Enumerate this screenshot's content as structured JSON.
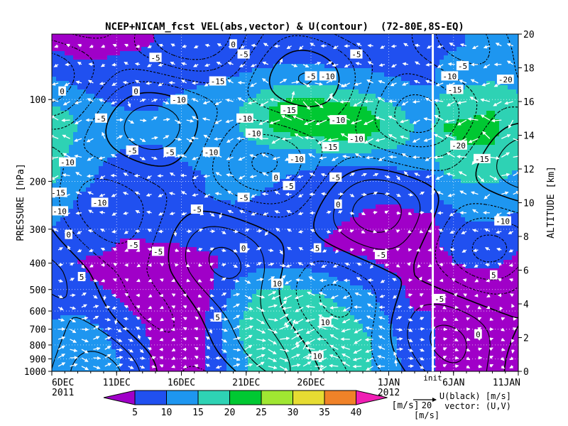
{
  "chart_data": {
    "type": "heatmap",
    "title": "NCEP+NICAM_fcst VEL(abs,vector) & U(contour)  (72-80E,8S-EQ)",
    "ylabel_left": "PRESSURE [hPa]",
    "ylabel_right": "ALTITUDE [km]",
    "x_ticks": [
      {
        "day": 0,
        "label": "6DEC",
        "sub": "2011"
      },
      {
        "day": 5,
        "label": "11DEC",
        "sub": ""
      },
      {
        "day": 10,
        "label": "16DEC",
        "sub": ""
      },
      {
        "day": 15,
        "label": "21DEC",
        "sub": ""
      },
      {
        "day": 20,
        "label": "26DEC",
        "sub": ""
      },
      {
        "day": 26,
        "label": "1JAN",
        "sub": "2012"
      },
      {
        "day": 31,
        "label": "6JAN",
        "sub": ""
      },
      {
        "day": 36,
        "label": "11JAN",
        "sub": ""
      }
    ],
    "x_range_days": [
      0,
      36
    ],
    "init_day": 29.4,
    "init_label": "init",
    "pressure_ticks": [
      100,
      200,
      300,
      400,
      500,
      600,
      700,
      800,
      900,
      1000
    ],
    "pressure_range": [
      1000,
      50
    ],
    "altitude_ticks": [
      0,
      2,
      4,
      6,
      8,
      10,
      12,
      14,
      16,
      18,
      20
    ],
    "altitude_range": [
      0,
      20
    ],
    "color_levels": [
      5,
      10,
      15,
      20,
      25,
      30,
      35,
      40
    ],
    "color_bins": [
      "#a000c8",
      "#2050f0",
      "#1e96f0",
      "#2ed2b4",
      "#00c832",
      "#a0e632",
      "#e6dc32",
      "#f08228",
      "#f01eb4"
    ],
    "colorbar_unit": "[m/s]",
    "vector_ref_value": "20",
    "vector_ref_unit": "[m/s]",
    "legend_line1": "U(black) [m/s]",
    "legend_line2": "vector: (U,V)",
    "speed_field": {
      "days": [
        0,
        2,
        4,
        6,
        8,
        10,
        12,
        14,
        16,
        18,
        20,
        22,
        24,
        26,
        28,
        29.4,
        30,
        32,
        34,
        36
      ],
      "altitudes_km": [
        0.5,
        1.5,
        2.5,
        3.5,
        4.5,
        5.5,
        6.5,
        7.5,
        8.5,
        9.5,
        10.5,
        11.5,
        12.5,
        13.5,
        14.5,
        15.5,
        16.5,
        17.5,
        18.5,
        19.5
      ],
      "rows": [
        [
          14,
          14,
          12,
          9,
          4,
          3,
          5,
          12,
          17,
          17,
          17,
          17,
          16,
          13,
          6,
          6,
          4,
          4,
          4,
          4
        ],
        [
          13,
          13,
          11,
          8,
          4,
          3,
          5,
          13,
          18,
          18,
          18,
          18,
          17,
          12,
          6,
          6,
          4,
          4,
          3,
          4
        ],
        [
          11,
          12,
          10,
          7,
          4,
          3,
          5,
          14,
          19,
          20,
          19,
          18,
          15,
          11,
          5,
          5,
          4,
          3,
          3,
          3
        ],
        [
          9,
          10,
          8,
          5,
          3,
          3,
          5,
          13,
          18,
          19,
          18,
          16,
          14,
          9,
          5,
          5,
          3,
          3,
          3,
          3
        ],
        [
          7,
          8,
          6,
          4,
          3,
          3,
          4,
          11,
          16,
          17,
          16,
          14,
          12,
          7,
          4,
          4,
          3,
          3,
          3,
          3
        ],
        [
          6,
          6,
          4,
          3,
          3,
          3,
          4,
          9,
          12,
          13,
          12,
          10,
          8,
          6,
          4,
          4,
          3,
          3,
          4,
          4
        ],
        [
          6,
          5,
          4,
          3,
          3,
          3,
          4,
          6,
          8,
          8,
          8,
          7,
          6,
          4,
          3,
          3,
          4,
          6,
          6,
          4
        ],
        [
          8,
          6,
          6,
          4,
          5,
          5,
          6,
          6,
          7,
          7,
          6,
          4,
          3,
          3,
          3,
          3,
          5,
          7,
          8,
          6
        ],
        [
          10,
          8,
          7,
          6,
          6,
          7,
          7,
          7,
          8,
          7,
          6,
          5,
          4,
          3,
          3,
          3,
          6,
          9,
          9,
          8
        ],
        [
          12,
          9,
          8,
          7,
          7,
          8,
          9,
          9,
          9,
          8,
          7,
          6,
          5,
          4,
          5,
          5,
          8,
          11,
          11,
          10
        ],
        [
          14,
          10,
          9,
          8,
          8,
          9,
          10,
          11,
          10,
          9,
          8,
          7,
          7,
          6,
          7,
          7,
          11,
          13,
          13,
          12
        ],
        [
          16,
          12,
          9,
          8,
          8,
          9,
          10,
          12,
          11,
          10,
          9,
          8,
          8,
          8,
          9,
          9,
          14,
          16,
          16,
          14
        ],
        [
          17,
          13,
          10,
          9,
          9,
          10,
          11,
          12,
          12,
          12,
          11,
          11,
          11,
          11,
          12,
          12,
          17,
          18,
          18,
          16
        ],
        [
          18,
          14,
          12,
          10,
          10,
          11,
          12,
          13,
          15,
          17,
          18,
          19,
          19,
          17,
          14,
          14,
          19,
          20,
          20,
          17
        ],
        [
          18,
          15,
          12,
          11,
          11,
          12,
          13,
          14,
          19,
          22,
          23,
          24,
          23,
          19,
          15,
          15,
          20,
          21,
          21,
          18
        ],
        [
          16,
          14,
          11,
          10,
          10,
          12,
          13,
          14,
          18,
          23,
          24,
          23,
          21,
          17,
          13,
          13,
          18,
          19,
          20,
          17
        ],
        [
          13,
          11,
          9,
          8,
          9,
          10,
          11,
          12,
          15,
          18,
          18,
          17,
          15,
          13,
          11,
          11,
          15,
          16,
          17,
          15
        ],
        [
          10,
          8,
          7,
          7,
          8,
          9,
          9,
          10,
          11,
          12,
          12,
          11,
          11,
          10,
          9,
          9,
          12,
          13,
          14,
          13
        ],
        [
          6,
          5,
          5,
          6,
          6,
          7,
          7,
          8,
          9,
          9,
          9,
          9,
          9,
          8,
          8,
          8,
          10,
          11,
          12,
          11
        ],
        [
          4,
          4,
          4,
          4,
          5,
          5,
          6,
          6,
          7,
          8,
          8,
          8,
          8,
          7,
          7,
          7,
          9,
          10,
          10,
          10
        ]
      ]
    },
    "contour_labels": [
      {
        "day": 8,
        "alt": 18.6,
        "text": "-5"
      },
      {
        "day": 14,
        "alt": 19.4,
        "text": "0"
      },
      {
        "day": 14.8,
        "alt": 18.8,
        "text": "-5"
      },
      {
        "day": 20,
        "alt": 17.5,
        "text": "-5"
      },
      {
        "day": 21.3,
        "alt": 17.5,
        "text": "-10"
      },
      {
        "day": 12.8,
        "alt": 17.2,
        "text": "-15"
      },
      {
        "day": 23.5,
        "alt": 18.8,
        "text": "-5"
      },
      {
        "day": 30.7,
        "alt": 17.5,
        "text": "-10"
      },
      {
        "day": 31.7,
        "alt": 18.1,
        "text": "-5"
      },
      {
        "day": 31.1,
        "alt": 16.7,
        "text": "-15"
      },
      {
        "day": 35,
        "alt": 17.3,
        "text": "-20"
      },
      {
        "day": 0.8,
        "alt": 16.6,
        "text": "0"
      },
      {
        "day": 6.5,
        "alt": 16.6,
        "text": "0"
      },
      {
        "day": 9.8,
        "alt": 16.1,
        "text": "-10"
      },
      {
        "day": 3.8,
        "alt": 15.0,
        "text": "-5"
      },
      {
        "day": 14.9,
        "alt": 15.0,
        "text": "-10"
      },
      {
        "day": 18.3,
        "alt": 15.5,
        "text": "-15"
      },
      {
        "day": 22.1,
        "alt": 14.9,
        "text": "-10"
      },
      {
        "day": 15.6,
        "alt": 14.1,
        "text": "-10"
      },
      {
        "day": 23.5,
        "alt": 13.8,
        "text": "-10"
      },
      {
        "day": 21.5,
        "alt": 13.3,
        "text": "-15"
      },
      {
        "day": 31.4,
        "alt": 13.4,
        "text": "-20"
      },
      {
        "day": 33.2,
        "alt": 12.6,
        "text": "-15"
      },
      {
        "day": 6.2,
        "alt": 13.1,
        "text": "-5"
      },
      {
        "day": 9.1,
        "alt": 13.0,
        "text": "-5"
      },
      {
        "day": 12.3,
        "alt": 13.0,
        "text": "-10"
      },
      {
        "day": 18.9,
        "alt": 12.6,
        "text": "-10"
      },
      {
        "day": 1.2,
        "alt": 12.4,
        "text": "-10"
      },
      {
        "day": 17.3,
        "alt": 11.5,
        "text": "0"
      },
      {
        "day": 21.9,
        "alt": 11.5,
        "text": "-5"
      },
      {
        "day": 18.3,
        "alt": 11.0,
        "text": "-5"
      },
      {
        "day": 0.5,
        "alt": 10.6,
        "text": "-15"
      },
      {
        "day": 3.7,
        "alt": 10.0,
        "text": "-10"
      },
      {
        "day": 14.8,
        "alt": 10.3,
        "text": "-5"
      },
      {
        "day": 22.1,
        "alt": 9.9,
        "text": "0"
      },
      {
        "day": 11.2,
        "alt": 9.6,
        "text": "-5"
      },
      {
        "day": 0.6,
        "alt": 9.5,
        "text": "-10"
      },
      {
        "day": 34.8,
        "alt": 8.9,
        "text": "-10"
      },
      {
        "day": 1.3,
        "alt": 8.1,
        "text": "0"
      },
      {
        "day": 6.3,
        "alt": 7.5,
        "text": "-5"
      },
      {
        "day": 14.8,
        "alt": 7.3,
        "text": "0"
      },
      {
        "day": 8.2,
        "alt": 7.1,
        "text": "-5"
      },
      {
        "day": 20.5,
        "alt": 7.3,
        "text": "5"
      },
      {
        "day": 25.4,
        "alt": 6.9,
        "text": "-5"
      },
      {
        "day": 2.3,
        "alt": 5.6,
        "text": "5"
      },
      {
        "day": 17.4,
        "alt": 5.2,
        "text": "10"
      },
      {
        "day": 29.9,
        "alt": 4.3,
        "text": "-5"
      },
      {
        "day": 34.1,
        "alt": 5.7,
        "text": "5"
      },
      {
        "day": 12.8,
        "alt": 3.2,
        "text": "5"
      },
      {
        "day": 21.1,
        "alt": 2.9,
        "text": "10"
      },
      {
        "day": 32.9,
        "alt": 2.2,
        "text": "0"
      },
      {
        "day": 20.5,
        "alt": 0.9,
        "text": "10"
      }
    ]
  }
}
